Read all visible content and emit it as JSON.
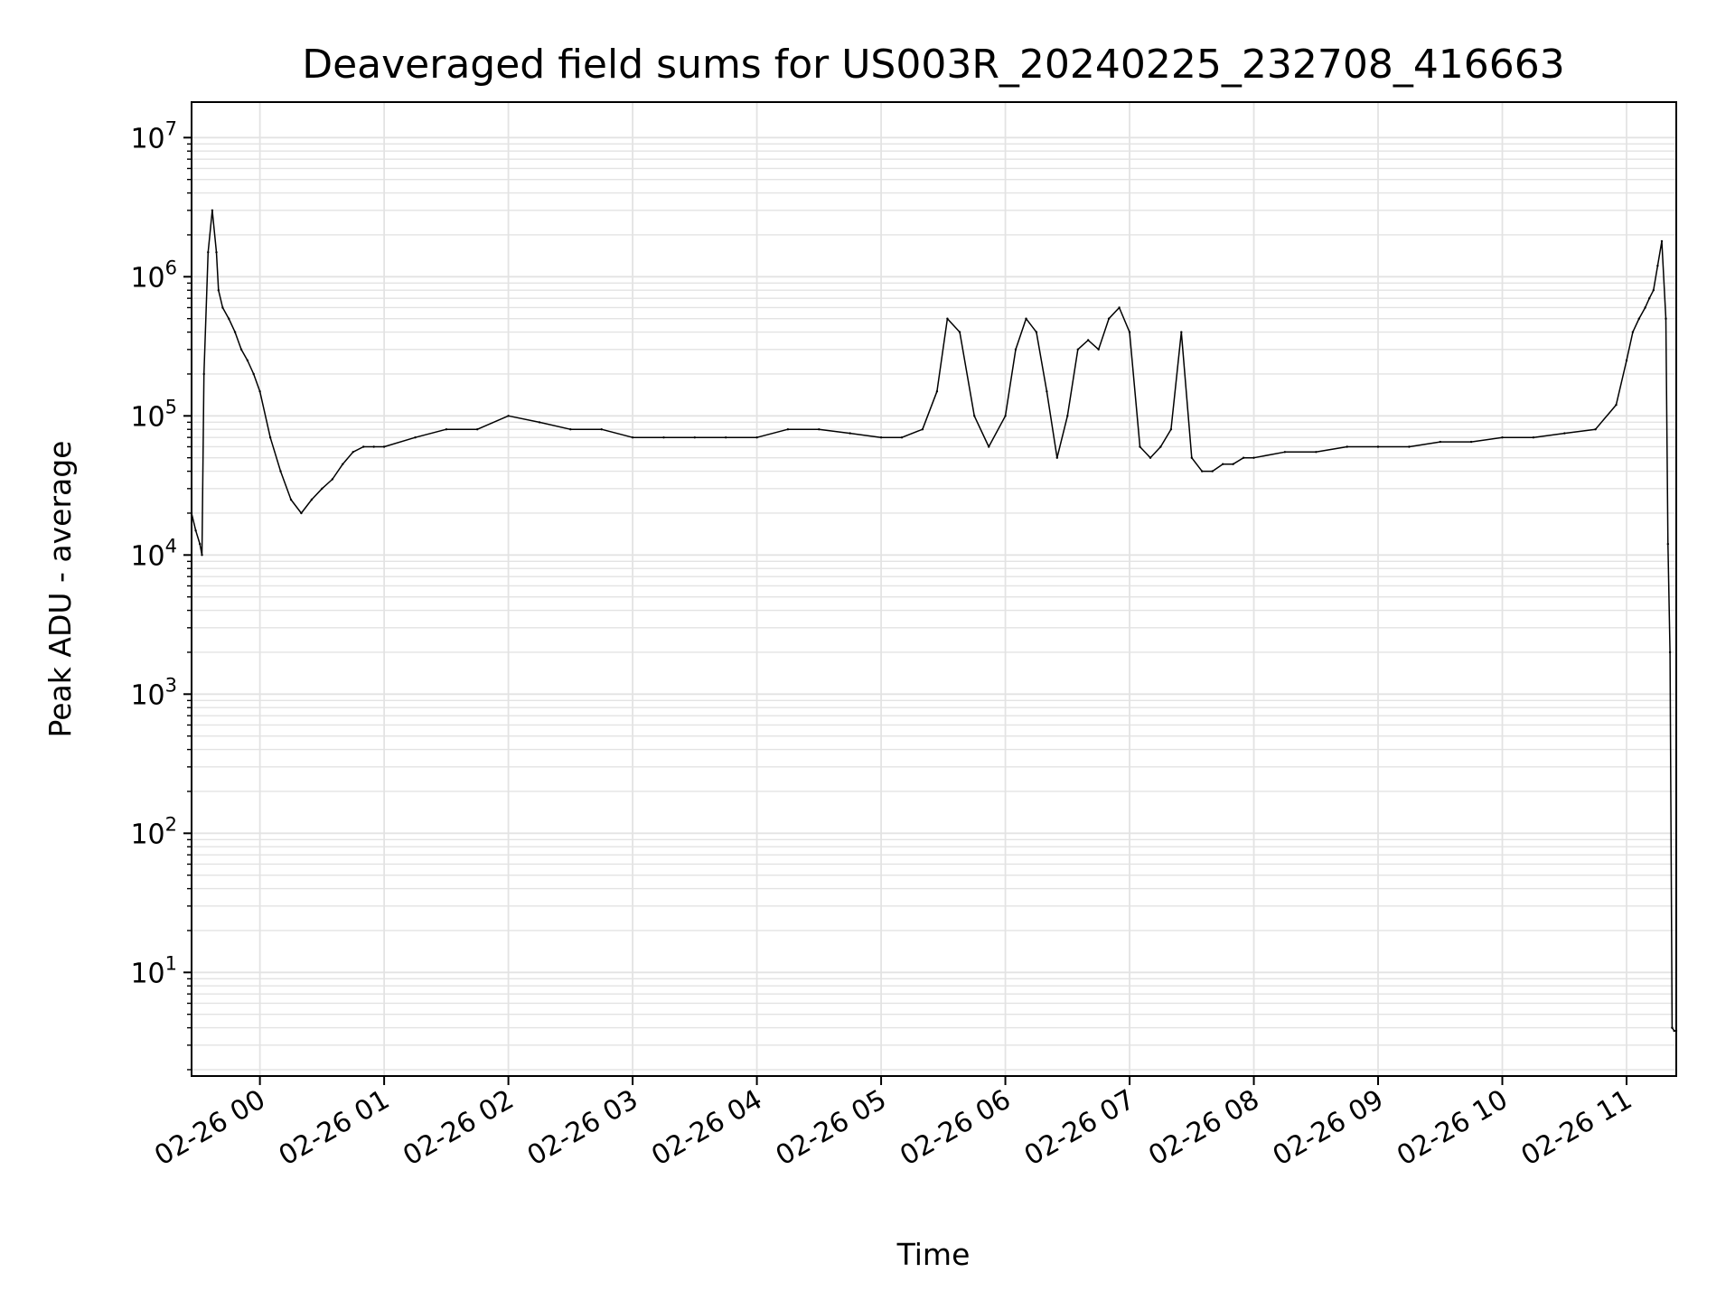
{
  "chart_data": {
    "type": "line",
    "title": "Deaveraged field sums for US003R_20240225_232708_416663",
    "xlabel": "Time",
    "ylabel": "Peak ADU - average",
    "yscale": "log",
    "grid": true,
    "line_color": "#000000",
    "grid_color": "#e3e3e3",
    "xlim": [
      "2024-02-25 23:27",
      "2024-02-26 11:24"
    ],
    "ylim": [
      1.8,
      18000000
    ],
    "xticks": [
      {
        "value": "2024-02-26 00:00",
        "label": "02-26 00"
      },
      {
        "value": "2024-02-26 01:00",
        "label": "02-26 01"
      },
      {
        "value": "2024-02-26 02:00",
        "label": "02-26 02"
      },
      {
        "value": "2024-02-26 03:00",
        "label": "02-26 03"
      },
      {
        "value": "2024-02-26 04:00",
        "label": "02-26 04"
      },
      {
        "value": "2024-02-26 05:00",
        "label": "02-26 05"
      },
      {
        "value": "2024-02-26 06:00",
        "label": "02-26 06"
      },
      {
        "value": "2024-02-26 07:00",
        "label": "02-26 07"
      },
      {
        "value": "2024-02-26 08:00",
        "label": "02-26 08"
      },
      {
        "value": "2024-02-26 09:00",
        "label": "02-26 09"
      },
      {
        "value": "2024-02-26 10:00",
        "label": "02-26 10"
      },
      {
        "value": "2024-02-26 11:00",
        "label": "02-26 11"
      }
    ],
    "yticks": [
      {
        "value": 10,
        "base": "10",
        "exp": "1"
      },
      {
        "value": 100,
        "base": "10",
        "exp": "2"
      },
      {
        "value": 1000,
        "base": "10",
        "exp": "3"
      },
      {
        "value": 10000,
        "base": "10",
        "exp": "4"
      },
      {
        "value": 100000,
        "base": "10",
        "exp": "5"
      },
      {
        "value": 1000000,
        "base": "10",
        "exp": "6"
      },
      {
        "value": 10000000,
        "base": "10",
        "exp": "7"
      }
    ],
    "series": [
      {
        "x": [
          "2024-02-25 23:27",
          "2024-02-25 23:29",
          "2024-02-25 23:31",
          "2024-02-25 23:32",
          "2024-02-25 23:33",
          "2024-02-25 23:35",
          "2024-02-25 23:37",
          "2024-02-25 23:39",
          "2024-02-25 23:40",
          "2024-02-25 23:42",
          "2024-02-25 23:45",
          "2024-02-25 23:48",
          "2024-02-25 23:51",
          "2024-02-25 23:54",
          "2024-02-25 23:57",
          "2024-02-26 00:00",
          "2024-02-26 00:05",
          "2024-02-26 00:10",
          "2024-02-26 00:15",
          "2024-02-26 00:20",
          "2024-02-26 00:25",
          "2024-02-26 00:30",
          "2024-02-26 00:35",
          "2024-02-26 00:40",
          "2024-02-26 00:45",
          "2024-02-26 00:50",
          "2024-02-26 00:55",
          "2024-02-26 01:00",
          "2024-02-26 01:15",
          "2024-02-26 01:30",
          "2024-02-26 01:45",
          "2024-02-26 02:00",
          "2024-02-26 02:15",
          "2024-02-26 02:30",
          "2024-02-26 02:45",
          "2024-02-26 03:00",
          "2024-02-26 03:15",
          "2024-02-26 03:30",
          "2024-02-26 03:45",
          "2024-02-26 04:00",
          "2024-02-26 04:15",
          "2024-02-26 04:30",
          "2024-02-26 04:45",
          "2024-02-26 05:00",
          "2024-02-26 05:10",
          "2024-02-26 05:20",
          "2024-02-26 05:27",
          "2024-02-26 05:32",
          "2024-02-26 05:38",
          "2024-02-26 05:45",
          "2024-02-26 05:52",
          "2024-02-26 06:00",
          "2024-02-26 06:05",
          "2024-02-26 06:10",
          "2024-02-26 06:15",
          "2024-02-26 06:20",
          "2024-02-26 06:25",
          "2024-02-26 06:30",
          "2024-02-26 06:35",
          "2024-02-26 06:40",
          "2024-02-26 06:45",
          "2024-02-26 06:50",
          "2024-02-26 06:55",
          "2024-02-26 07:00",
          "2024-02-26 07:05",
          "2024-02-26 07:10",
          "2024-02-26 07:15",
          "2024-02-26 07:20",
          "2024-02-26 07:25",
          "2024-02-26 07:30",
          "2024-02-26 07:35",
          "2024-02-26 07:40",
          "2024-02-26 07:45",
          "2024-02-26 07:50",
          "2024-02-26 07:55",
          "2024-02-26 08:00",
          "2024-02-26 08:15",
          "2024-02-26 08:30",
          "2024-02-26 08:45",
          "2024-02-26 09:00",
          "2024-02-26 09:15",
          "2024-02-26 09:30",
          "2024-02-26 09:45",
          "2024-02-26 10:00",
          "2024-02-26 10:15",
          "2024-02-26 10:30",
          "2024-02-26 10:45",
          "2024-02-26 10:55",
          "2024-02-26 11:00",
          "2024-02-26 11:03",
          "2024-02-26 11:06",
          "2024-02-26 11:09",
          "2024-02-26 11:11",
          "2024-02-26 11:13",
          "2024-02-26 11:15",
          "2024-02-26 11:17",
          "2024-02-26 11:19",
          "2024-02-26 11:20",
          "2024-02-26 11:21",
          "2024-02-26 11:22",
          "2024-02-26 11:23",
          "2024-02-26 11:24"
        ],
        "y": [
          20000,
          15000,
          12000,
          10000,
          200000,
          1500000,
          3000000,
          1500000,
          800000,
          600000,
          500000,
          400000,
          300000,
          250000,
          200000,
          150000,
          70000,
          40000,
          25000,
          20000,
          25000,
          30000,
          35000,
          45000,
          55000,
          60000,
          60000,
          60000,
          70000,
          80000,
          80000,
          100000,
          90000,
          80000,
          80000,
          70000,
          70000,
          70000,
          70000,
          70000,
          80000,
          80000,
          75000,
          70000,
          70000,
          80000,
          150000,
          500000,
          400000,
          100000,
          60000,
          100000,
          300000,
          500000,
          400000,
          150000,
          50000,
          100000,
          300000,
          350000,
          300000,
          500000,
          600000,
          400000,
          60000,
          50000,
          60000,
          80000,
          400000,
          50000,
          40000,
          40000,
          45000,
          45000,
          50000,
          50000,
          55000,
          55000,
          60000,
          60000,
          60000,
          65000,
          65000,
          70000,
          70000,
          75000,
          80000,
          120000,
          250000,
          400000,
          500000,
          600000,
          700000,
          800000,
          1200000,
          1800000,
          500000,
          12000,
          2000,
          4,
          3.8,
          3.8
        ]
      }
    ]
  }
}
